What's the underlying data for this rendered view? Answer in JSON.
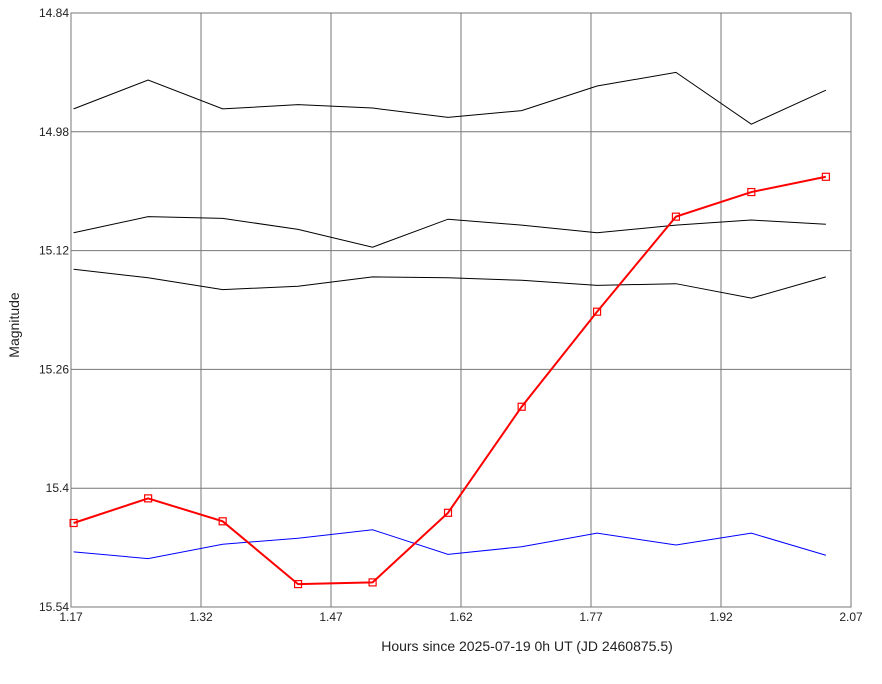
{
  "chart_data": {
    "type": "line",
    "x_label": "Hours since 2025-07-19 0h UT (JD 2460875.5)",
    "y_label": "Magnitude",
    "x": [
      1.173,
      1.259,
      1.345,
      1.432,
      1.518,
      1.605,
      1.69,
      1.777,
      1.868,
      1.955,
      2.041
    ],
    "series": [
      {
        "color": "#000000",
        "values": [
          14.953,
          14.919,
          14.953,
          14.948,
          14.952,
          14.963,
          14.955,
          14.926,
          14.91,
          14.971,
          14.931
        ]
      },
      {
        "color": "#000000",
        "values": [
          15.099,
          15.08,
          15.082,
          15.095,
          15.116,
          15.083,
          15.09,
          15.099,
          15.09,
          15.084,
          15.089
        ]
      },
      {
        "color": "#000000",
        "values": [
          15.142,
          15.152,
          15.166,
          15.162,
          15.151,
          15.152,
          15.155,
          15.161,
          15.159,
          15.176,
          15.151
        ]
      },
      {
        "color": "#0000ff",
        "values": [
          15.475,
          15.483,
          15.466,
          15.459,
          15.449,
          15.478,
          15.469,
          15.453,
          15.467,
          15.453,
          15.479
        ]
      },
      {
        "color": "#ff0000",
        "marker": "square",
        "values": [
          15.441,
          15.412,
          15.439,
          15.513,
          15.511,
          15.429,
          15.304,
          15.192,
          15.08,
          15.051,
          15.033
        ]
      }
    ],
    "xlim": [
      1.17,
      2.07
    ],
    "xticks": [
      1.17,
      1.32,
      1.47,
      1.62,
      1.77,
      1.92,
      2.07
    ],
    "ylim": [
      14.84,
      15.54
    ],
    "yticks": [
      14.84,
      14.98,
      15.12,
      15.26,
      15.4,
      15.54
    ],
    "y_inverted": true,
    "grid": true
  }
}
